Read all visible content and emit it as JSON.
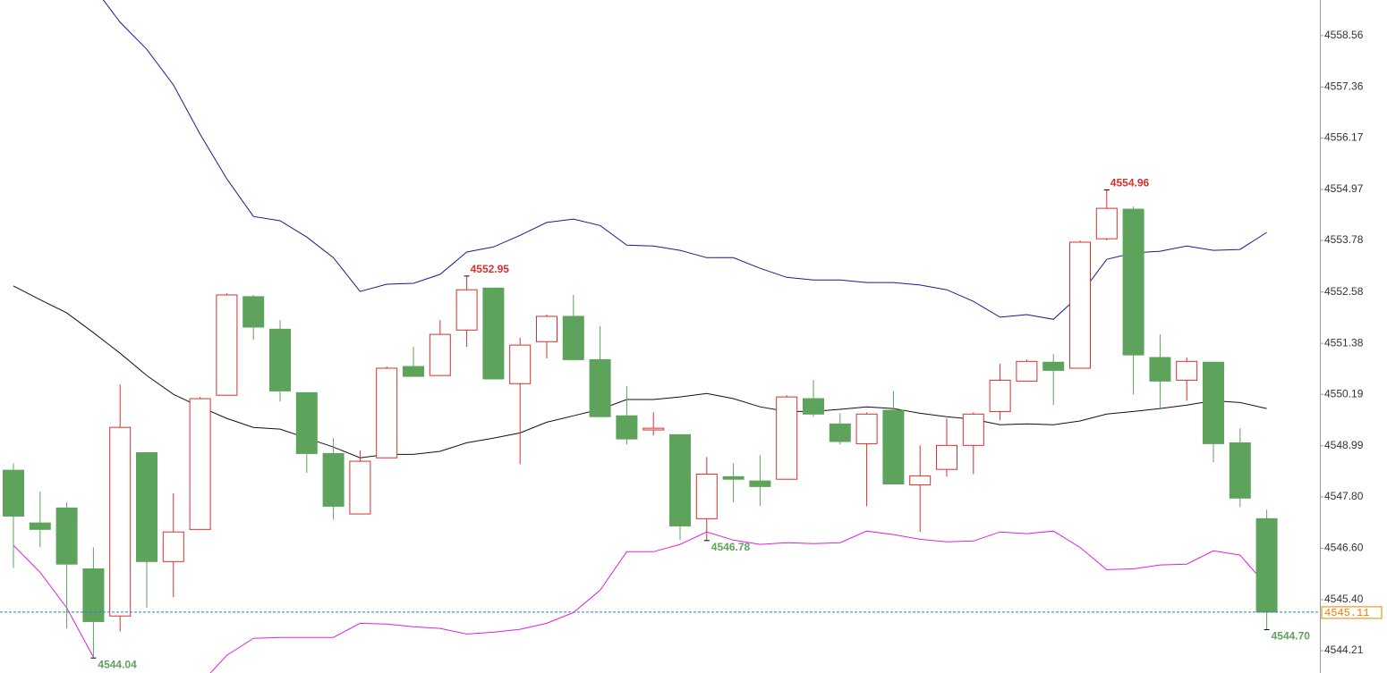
{
  "chart_data": {
    "type": "candlestick",
    "open": [
      4548.42,
      4547.19,
      4547.54,
      4546.12,
      4545.02,
      4548.83,
      4546.29,
      4547.04,
      4550.17,
      4552.47,
      4551.71,
      4550.23,
      4548.81,
      4547.4,
      4548.71,
      4550.84,
      4550.63,
      4551.69,
      4552.67,
      4550.44,
      4551.42,
      4552.01,
      4551.0,
      4549.69,
      4549.36,
      4549.25,
      4547.29,
      4548.27,
      4548.17,
      4548.21,
      4550.09,
      4549.5,
      4549.04,
      4549.82,
      4548.08,
      4548.44,
      4549.0,
      4549.79,
      4550.5,
      4550.94,
      4550.8,
      4553.82,
      4554.51,
      4551.05,
      4550.52,
      4550.94,
      4549.06,
      4547.29
    ],
    "high": [
      4548.58,
      4547.92,
      4547.67,
      4546.62,
      4550.42,
      4548.83,
      4547.88,
      4550.13,
      4552.55,
      4552.51,
      4551.92,
      4550.23,
      4549.17,
      4548.88,
      4550.84,
      4551.3,
      4551.92,
      4552.95,
      4552.67,
      4551.51,
      4552.05,
      4552.51,
      4551.78,
      4550.38,
      4549.77,
      4549.25,
      4548.73,
      4548.58,
      4548.77,
      4550.17,
      4550.52,
      4549.75,
      4549.77,
      4550.27,
      4549.0,
      4549.63,
      4549.77,
      4550.9,
      4551.0,
      4551.13,
      4553.78,
      4554.96,
      4554.57,
      4551.59,
      4551.05,
      4550.94,
      4549.4,
      4547.5
    ],
    "low": [
      4546.14,
      4546.62,
      4544.73,
      4544.04,
      4544.66,
      4545.21,
      4545.46,
      4547.04,
      4550.17,
      4551.46,
      4550.02,
      4548.36,
      4547.27,
      4547.4,
      4548.71,
      4550.61,
      4550.63,
      4551.3,
      4550.55,
      4548.56,
      4551.03,
      4551.0,
      4549.67,
      4549.02,
      4549.23,
      4546.79,
      4546.78,
      4547.67,
      4547.58,
      4548.21,
      4549.67,
      4549.02,
      4547.58,
      4548.1,
      4546.98,
      4548.27,
      4548.33,
      4549.59,
      4550.5,
      4549.94,
      4550.8,
      4553.78,
      4550.19,
      4549.86,
      4550.04,
      4548.61,
      4547.56,
      4544.7
    ],
    "close": [
      4547.35,
      4547.04,
      4546.23,
      4544.89,
      4549.42,
      4546.29,
      4546.98,
      4550.09,
      4552.51,
      4551.76,
      4550.27,
      4548.81,
      4547.58,
      4548.63,
      4550.8,
      4550.61,
      4551.59,
      4552.63,
      4550.55,
      4551.34,
      4552.01,
      4551.0,
      4549.67,
      4549.15,
      4549.4,
      4547.12,
      4548.33,
      4548.21,
      4548.04,
      4550.13,
      4549.73,
      4549.09,
      4549.73,
      4548.1,
      4548.29,
      4549.0,
      4549.73,
      4550.52,
      4550.96,
      4550.75,
      4553.74,
      4554.53,
      4551.11,
      4550.5,
      4550.96,
      4549.04,
      4547.77,
      4545.11
    ],
    "high_labels": [
      null,
      null,
      null,
      null,
      null,
      null,
      null,
      null,
      null,
      null,
      null,
      null,
      null,
      null,
      null,
      null,
      null,
      "4552.95",
      null,
      null,
      null,
      null,
      null,
      null,
      null,
      null,
      null,
      null,
      null,
      null,
      null,
      null,
      null,
      null,
      null,
      null,
      null,
      null,
      null,
      null,
      null,
      "4554.96",
      null,
      null,
      null,
      null,
      null,
      null
    ],
    "low_labels": [
      null,
      null,
      null,
      "4544.04",
      null,
      null,
      null,
      null,
      null,
      null,
      null,
      null,
      null,
      null,
      null,
      null,
      null,
      null,
      null,
      null,
      null,
      null,
      null,
      null,
      null,
      null,
      "4546.78",
      null,
      null,
      null,
      null,
      null,
      null,
      null,
      null,
      null,
      null,
      null,
      null,
      null,
      null,
      null,
      null,
      null,
      null,
      null,
      null,
      "4544.70"
    ],
    "up_color": "#d9302c",
    "down_color": "#5ea35c",
    "high_label_color": "#d9302c",
    "low_label_color": "#5ea35c",
    "bands": [
      {
        "color": "#1a1a8c",
        "values": [
          null,
          null,
          null,
          4559.7,
          4558.87,
          4558.24,
          4557.41,
          4556.26,
          4555.22,
          4554.34,
          4554.24,
          4553.86,
          4553.38,
          4552.59,
          4552.76,
          4552.78,
          4552.99,
          4553.51,
          4553.63,
          4553.9,
          4554.2,
          4554.28,
          4554.13,
          4553.67,
          4553.65,
          4553.55,
          4553.38,
          4553.38,
          4553.13,
          4552.92,
          4552.86,
          4552.86,
          4552.8,
          4552.8,
          4552.74,
          4552.63,
          4552.36,
          4551.99,
          4552.05,
          4551.94,
          4552.51,
          4553.34,
          4553.49,
          4553.53,
          4553.65,
          4553.55,
          4553.57,
          4553.97
        ]
      },
      {
        "color": "#111111",
        "values": [
          4552.72,
          4552.4,
          4552.09,
          4551.63,
          4551.15,
          4550.63,
          4550.19,
          4549.9,
          4549.63,
          4549.42,
          4549.38,
          4549.17,
          4548.96,
          4548.71,
          4548.79,
          4548.79,
          4548.86,
          4549.06,
          4549.17,
          4549.29,
          4549.54,
          4549.69,
          4549.84,
          4550.07,
          4550.07,
          4550.13,
          4550.21,
          4550.09,
          4549.9,
          4549.79,
          4549.79,
          4549.84,
          4549.9,
          4549.86,
          4549.75,
          4549.67,
          4549.61,
          4549.48,
          4549.5,
          4549.48,
          4549.57,
          4549.73,
          4549.79,
          4549.86,
          4549.94,
          4550.04,
          4550.0,
          4549.86
        ]
      },
      {
        "color": "#e020e0",
        "values": [
          4546.67,
          4546.04,
          4545.21,
          4544.06,
          null,
          null,
          null,
          4543.43,
          4544.1,
          4544.5,
          4544.52,
          4544.52,
          4544.52,
          4544.85,
          4544.83,
          4544.77,
          4544.73,
          4544.6,
          4544.64,
          4544.71,
          4544.85,
          4545.1,
          4545.62,
          4546.52,
          4546.52,
          4546.69,
          4546.98,
          4546.79,
          4546.69,
          4546.73,
          4546.71,
          4546.73,
          4547.0,
          4546.92,
          4546.81,
          4546.75,
          4546.77,
          4546.98,
          4546.94,
          4547.0,
          4546.62,
          4546.1,
          4546.12,
          4546.21,
          4546.23,
          4546.54,
          4546.44,
          4545.73
        ]
      }
    ],
    "last_price": 4545.11,
    "last_price_color": "#f08000",
    "ylim": [
      4543.69,
      4559.39
    ],
    "yticks": [
      4558.56,
      4557.36,
      4556.17,
      4554.97,
      4553.78,
      4552.58,
      4551.38,
      4550.19,
      4548.99,
      {
        "value": 4547.8,
        "label": "4547.80"
      },
      {
        "value": 4546.6,
        "label": "4546.60"
      },
      {
        "value": 4545.4,
        "label": "4545.40"
      },
      4544.21
    ]
  }
}
